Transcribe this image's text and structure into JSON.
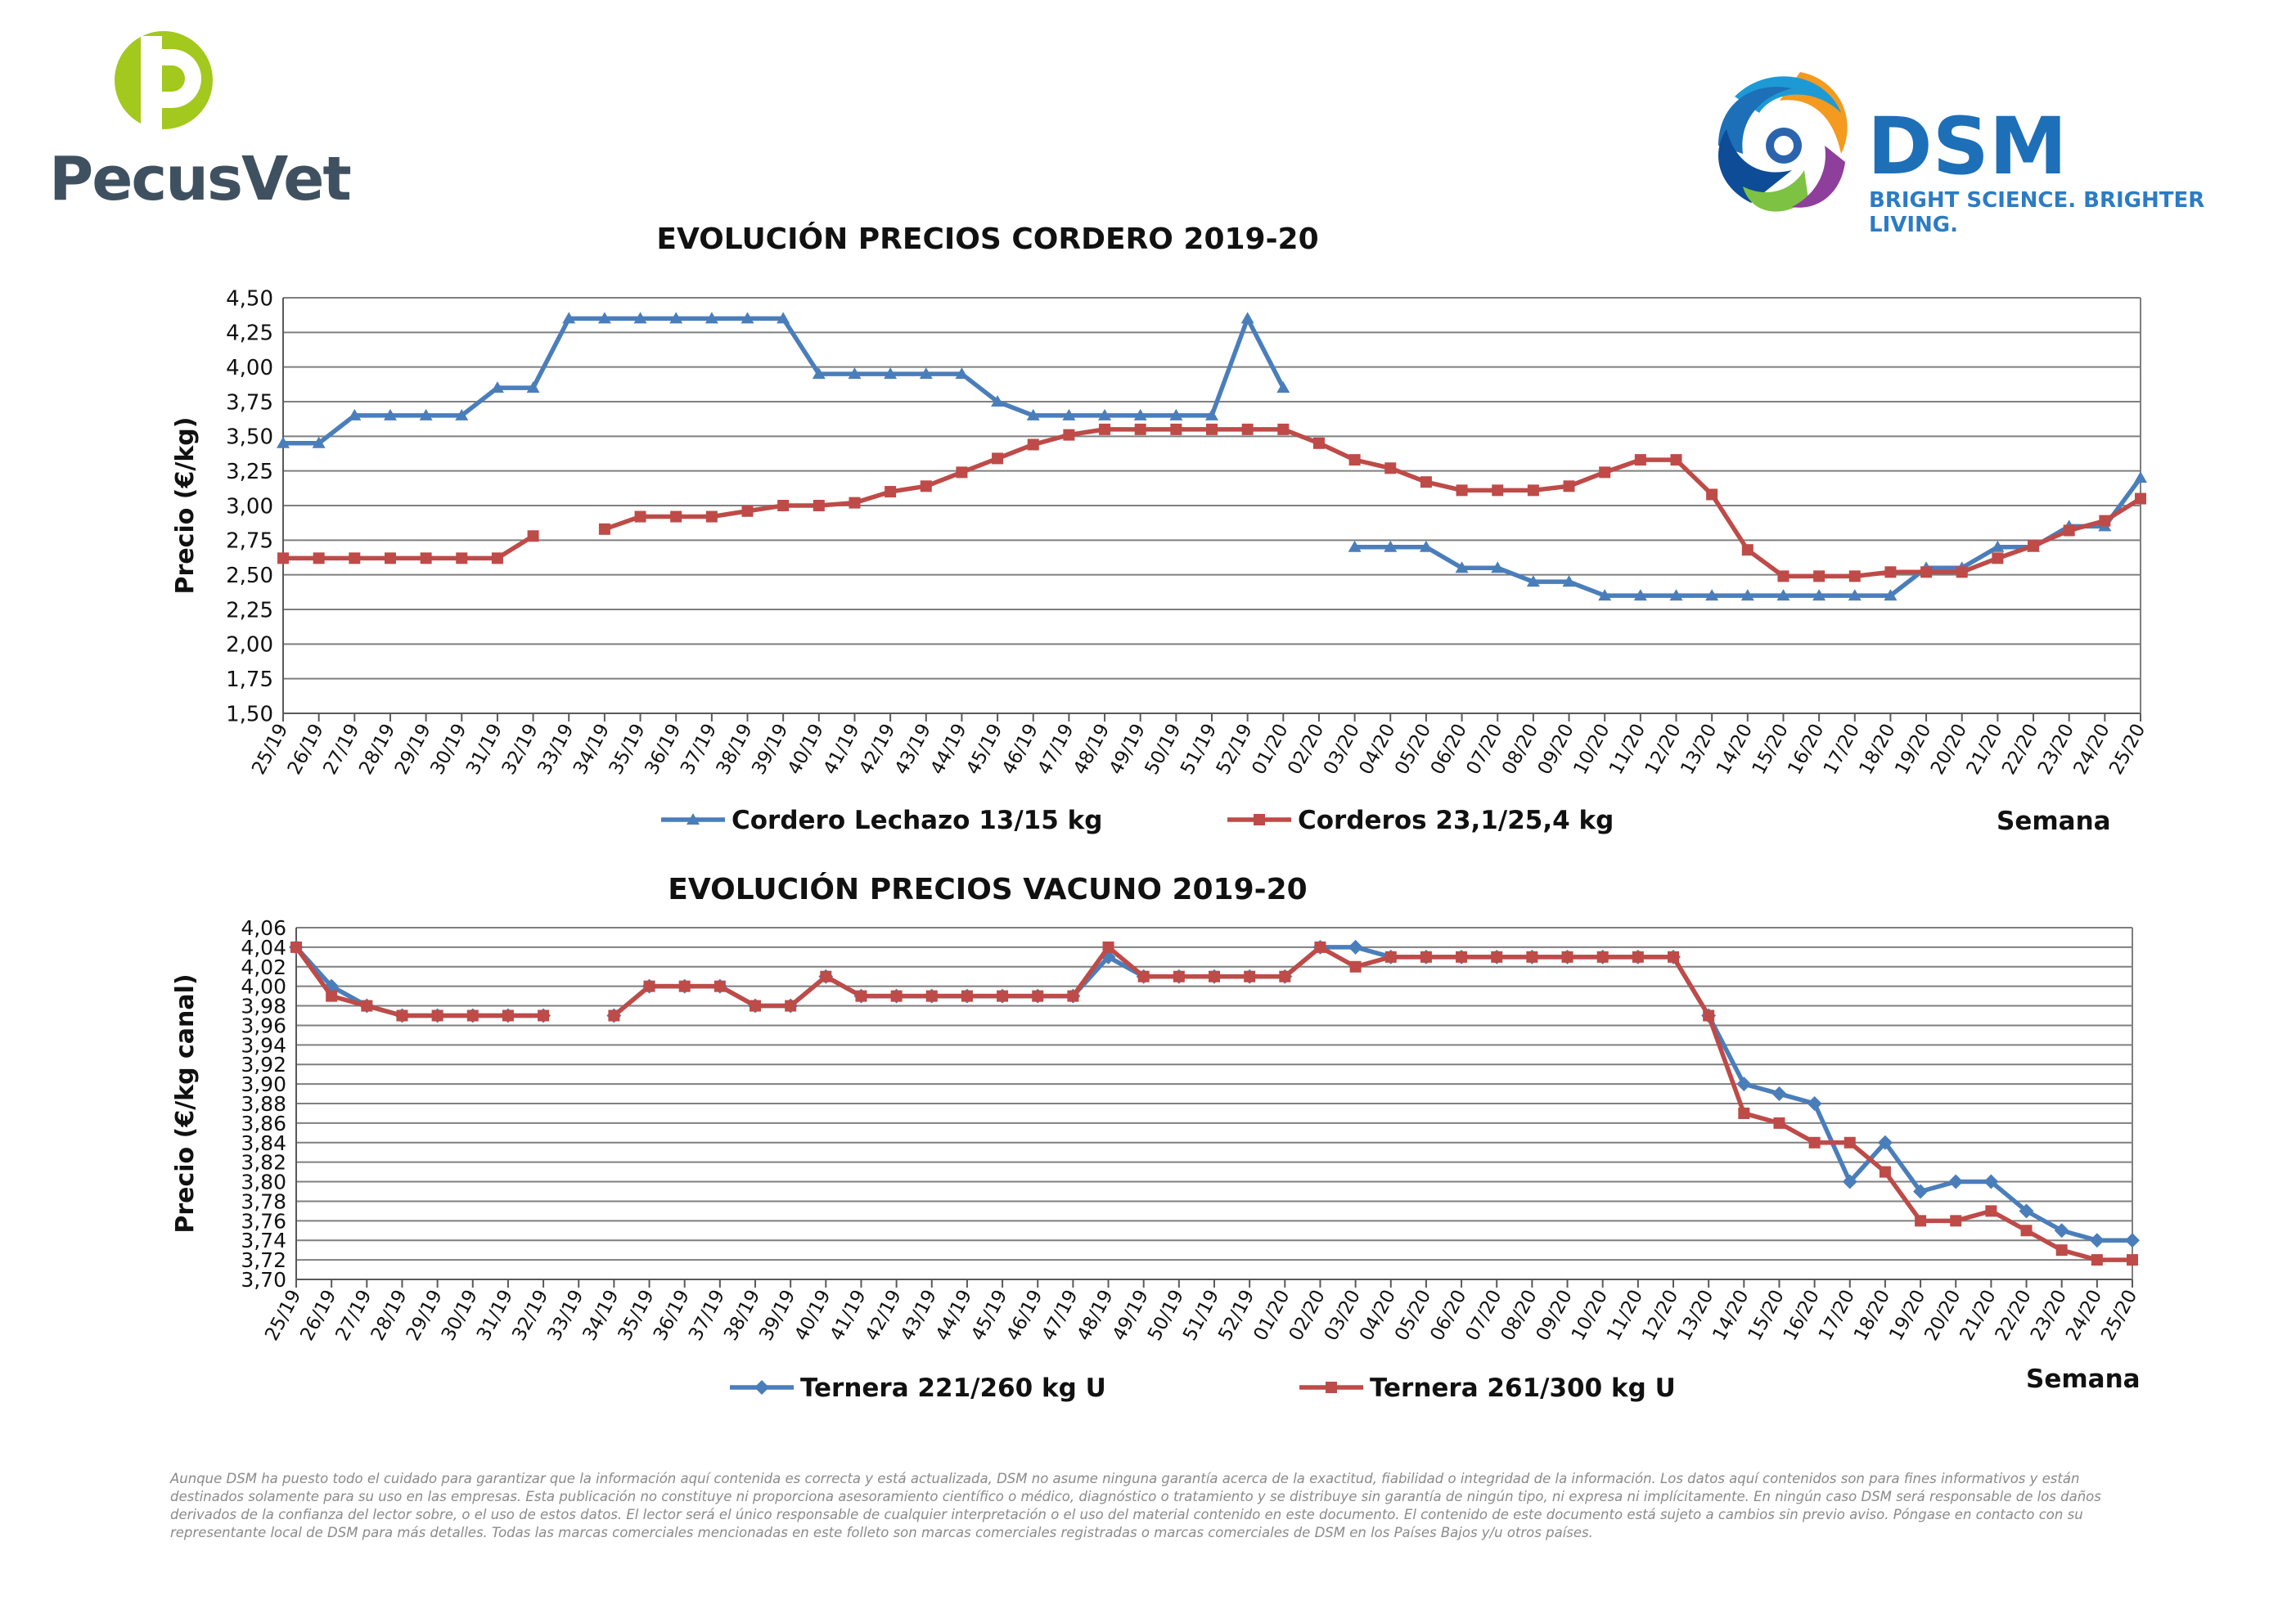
{
  "logos": {
    "left_brand": "PecusVet",
    "right_brand": "DSM",
    "right_tagline": "BRIGHT SCIENCE. BRIGHTER LIVING."
  },
  "colors": {
    "blue": "#4a7ebb",
    "red": "#be4b48",
    "grid": "#7f7f7f"
  },
  "weeks": [
    "25/19",
    "26/19",
    "27/19",
    "28/19",
    "29/19",
    "30/19",
    "31/19",
    "32/19",
    "33/19",
    "34/19",
    "35/19",
    "36/19",
    "37/19",
    "38/19",
    "39/19",
    "40/19",
    "41/19",
    "42/19",
    "43/19",
    "44/19",
    "45/19",
    "46/19",
    "47/19",
    "48/19",
    "49/19",
    "50/19",
    "51/19",
    "52/19",
    "01/20",
    "02/20",
    "03/20",
    "04/20",
    "05/20",
    "06/20",
    "07/20",
    "08/20",
    "09/20",
    "10/20",
    "11/20",
    "12/20",
    "13/20",
    "14/20",
    "15/20",
    "16/20",
    "17/20",
    "18/20",
    "19/20",
    "20/20",
    "21/20",
    "22/20",
    "23/20",
    "24/20",
    "25/20"
  ],
  "chart_data": [
    {
      "type": "line",
      "title": "EVOLUCIÓN PRECIOS CORDERO 2019-20",
      "ylabel": "Precio (€/kg)",
      "xlabel": "Semana",
      "ylim": [
        1.5,
        4.5
      ],
      "yticks": [
        "1,50",
        "1,75",
        "2,00",
        "2,25",
        "2,50",
        "2,75",
        "3,00",
        "3,25",
        "3,50",
        "3,75",
        "4,00",
        "4,25",
        "4,50"
      ],
      "grid": true,
      "legend_position": "bottom",
      "series": [
        {
          "name": "Cordero Lechazo 13/15 kg",
          "color": "#4a7ebb",
          "marker": "triangle",
          "values": [
            3.45,
            3.45,
            3.65,
            3.65,
            3.65,
            3.65,
            3.85,
            3.85,
            4.35,
            4.35,
            4.35,
            4.35,
            4.35,
            4.35,
            4.35,
            3.95,
            3.95,
            3.95,
            3.95,
            3.95,
            3.75,
            3.65,
            3.65,
            3.65,
            3.65,
            3.65,
            3.65,
            4.35,
            3.85,
            null,
            2.7,
            2.7,
            2.7,
            2.55,
            2.55,
            2.45,
            2.45,
            2.35,
            2.35,
            2.35,
            2.35,
            2.35,
            2.35,
            2.35,
            2.35,
            2.35,
            2.55,
            2.55,
            2.7,
            2.7,
            2.85,
            2.85,
            3.2
          ]
        },
        {
          "name": "Corderos 23,1/25,4 kg",
          "color": "#be4b48",
          "marker": "square",
          "values": [
            2.62,
            2.62,
            2.62,
            2.62,
            2.62,
            2.62,
            2.62,
            2.78,
            null,
            2.83,
            2.92,
            2.92,
            2.92,
            2.96,
            3.0,
            3.0,
            3.02,
            3.1,
            3.14,
            3.24,
            3.34,
            3.44,
            3.51,
            3.55,
            3.55,
            3.55,
            3.55,
            3.55,
            3.55,
            3.45,
            3.33,
            3.27,
            3.17,
            3.11,
            3.11,
            3.11,
            3.14,
            3.24,
            3.33,
            3.33,
            3.08,
            2.68,
            2.49,
            2.49,
            2.49,
            2.52,
            2.52,
            2.52,
            2.62,
            2.71,
            2.82,
            2.89,
            3.05
          ]
        }
      ]
    },
    {
      "type": "line",
      "title": "EVOLUCIÓN PRECIOS VACUNO 2019-20",
      "ylabel": "Precio (€/kg canal)",
      "xlabel": "Semana",
      "ylim": [
        3.7,
        4.06
      ],
      "yticks": [
        "3,70",
        "3,72",
        "3,74",
        "3,76",
        "3,78",
        "3,80",
        "3,82",
        "3,84",
        "3,86",
        "3,88",
        "3,90",
        "3,92",
        "3,94",
        "3,96",
        "3,98",
        "4,00",
        "4,02",
        "4,04",
        "4,06"
      ],
      "grid": true,
      "legend_position": "bottom",
      "series": [
        {
          "name": "Ternera 221/260 kg U",
          "color": "#4a7ebb",
          "marker": "diamond",
          "values": [
            4.04,
            4.0,
            3.98,
            3.97,
            3.97,
            3.97,
            3.97,
            3.97,
            null,
            3.97,
            4.0,
            4.0,
            4.0,
            3.98,
            3.98,
            4.01,
            3.99,
            3.99,
            3.99,
            3.99,
            3.99,
            3.99,
            3.99,
            4.03,
            4.01,
            4.01,
            4.01,
            4.01,
            4.01,
            4.04,
            4.04,
            4.03,
            4.03,
            4.03,
            4.03,
            4.03,
            4.03,
            4.03,
            4.03,
            4.03,
            3.97,
            3.9,
            3.89,
            3.88,
            3.8,
            3.84,
            3.79,
            3.8,
            3.8,
            3.77,
            3.75,
            3.74,
            3.74
          ]
        },
        {
          "name": "Ternera 261/300 kg U",
          "color": "#be4b48",
          "marker": "square",
          "values": [
            4.04,
            3.99,
            3.98,
            3.97,
            3.97,
            3.97,
            3.97,
            3.97,
            null,
            3.97,
            4.0,
            4.0,
            4.0,
            3.98,
            3.98,
            4.01,
            3.99,
            3.99,
            3.99,
            3.99,
            3.99,
            3.99,
            3.99,
            4.04,
            4.01,
            4.01,
            4.01,
            4.01,
            4.01,
            4.04,
            4.02,
            4.03,
            4.03,
            4.03,
            4.03,
            4.03,
            4.03,
            4.03,
            4.03,
            4.03,
            3.97,
            3.87,
            3.86,
            3.84,
            3.84,
            3.81,
            3.76,
            3.76,
            3.77,
            3.75,
            3.73,
            3.72,
            3.72
          ]
        }
      ]
    }
  ],
  "disclaimer": "Aunque DSM ha puesto todo el cuidado para garantizar que la información aquí contenida es correcta y está actualizada, DSM no asume ninguna garantía acerca de la exactitud, fiabilidad o integridad de la información. Los datos aquí contenidos son para fines informativos y están destinados solamente para su uso en las empresas. Esta publicación no constituye ni proporciona asesoramiento científico o médico, diagnóstico o tratamiento y se distribuye sin garantía de ningún tipo, ni expresa ni implícitamente. En ningún caso DSM será responsable de los daños derivados de la confianza del lector sobre, o el uso de estos datos. El lector será el único responsable de cualquier interpretación o el uso del material contenido en este documento. El contenido de este documento está sujeto a cambios sin previo aviso. Póngase en contacto con su representante local de DSM para más detalles. Todas las marcas comerciales mencionadas en este folleto son marcas comerciales registradas o marcas comerciales de DSM en los Países Bajos y/u otros países."
}
